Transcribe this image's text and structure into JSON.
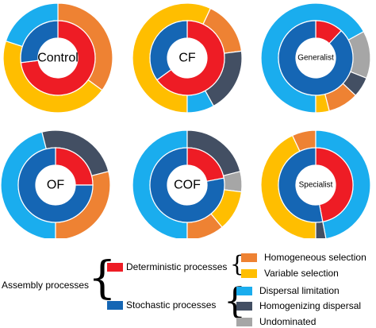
{
  "chart_data": {
    "type": "pie",
    "variant": "nested-donut",
    "colors": {
      "Deterministic processes": "#EE1C25",
      "Stochastic processes": "#1566B4",
      "Homogeneous selection": "#EE8233",
      "Variable selection": "#FFBE00",
      "Dispersal limitation": "#1AADEE",
      "Homogenizing dispersal": "#434F63",
      "Undominated": "#A6A6A6"
    },
    "charts": [
      {
        "label": "Control",
        "inner": [
          {
            "name": "Deterministic processes",
            "value": 73
          },
          {
            "name": "Stochastic processes",
            "value": 27
          }
        ],
        "outer": [
          {
            "name": "Homogeneous selection",
            "value": 35
          },
          {
            "name": "Variable selection",
            "value": 45
          },
          {
            "name": "Dispersal limitation",
            "value": 20
          }
        ]
      },
      {
        "label": "CF",
        "inner": [
          {
            "name": "Deterministic processes",
            "value": 65
          },
          {
            "name": "Stochastic processes",
            "value": 35
          }
        ],
        "outer": [
          {
            "name": "Variable selection",
            "value": 57
          },
          {
            "name": "Homogeneous selection",
            "value": 16
          },
          {
            "name": "Homogenizing dispersal",
            "value": 19
          },
          {
            "name": "Dispersal limitation",
            "value": 8
          }
        ]
      },
      {
        "label": "Generalist",
        "inner": [
          {
            "name": "Deterministic processes",
            "value": 12
          },
          {
            "name": "Stochastic processes",
            "value": 88
          }
        ],
        "outer": [
          {
            "name": "Dispersal limitation",
            "value": 67
          },
          {
            "name": "Undominated",
            "value": 14
          },
          {
            "name": "Homogenizing dispersal",
            "value": 6
          },
          {
            "name": "Homogeneous selection",
            "value": 9
          },
          {
            "name": "Variable selection",
            "value": 4
          }
        ]
      },
      {
        "label": "OF",
        "inner": [
          {
            "name": "Deterministic processes",
            "value": 25
          },
          {
            "name": "Stochastic processes",
            "value": 75
          }
        ],
        "outer": [
          {
            "name": "Dispersal limitation",
            "value": 46
          },
          {
            "name": "Homogenizing dispersal",
            "value": 25
          },
          {
            "name": "Homogeneous selection",
            "value": 29
          }
        ]
      },
      {
        "label": "COF",
        "inner": [
          {
            "name": "Deterministic processes",
            "value": 22
          },
          {
            "name": "Stochastic processes",
            "value": 78
          }
        ],
        "outer": [
          {
            "name": "Dispersal limitation",
            "value": 50
          },
          {
            "name": "Homogenizing dispersal",
            "value": 21
          },
          {
            "name": "Undominated",
            "value": 6
          },
          {
            "name": "Variable selection",
            "value": 12
          },
          {
            "name": "Homogeneous selection",
            "value": 11
          }
        ]
      },
      {
        "label": "Specialist",
        "inner": [
          {
            "name": "Deterministic processes",
            "value": 47
          },
          {
            "name": "Stochastic processes",
            "value": 53
          }
        ],
        "outer": [
          {
            "name": "Variable selection",
            "value": 43
          },
          {
            "name": "Homogeneous selection",
            "value": 7
          },
          {
            "name": "Dispersal limitation",
            "value": 47
          },
          {
            "name": "Homogenizing dispersal",
            "value": 3
          }
        ]
      }
    ]
  },
  "legend": {
    "root": "Assembly processes",
    "deterministic": "Deterministic processes",
    "stochastic": "Stochastic processes",
    "homogeneous_selection": "Homogeneous selection",
    "variable_selection": "Variable selection",
    "dispersal_limitation": "Dispersal limitation",
    "homogenizing_dispersal": "Homogenizing dispersal",
    "undominated": "Undominated"
  }
}
